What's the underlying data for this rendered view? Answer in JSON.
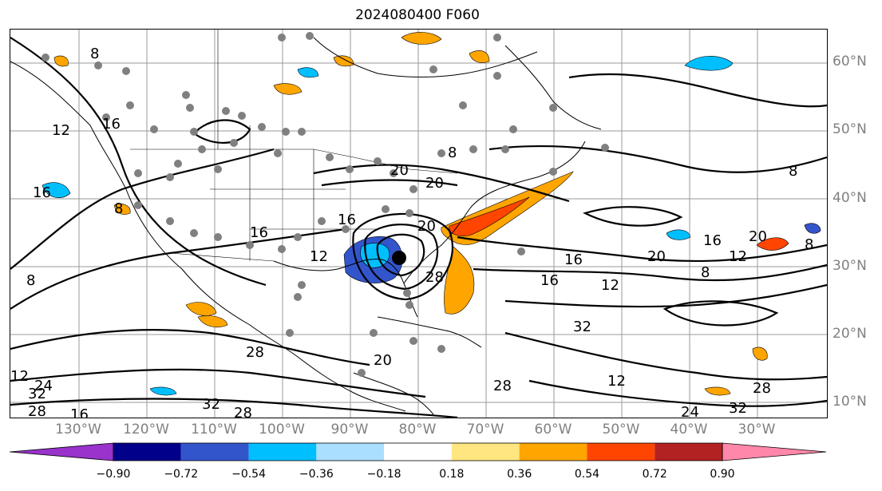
{
  "title": "2024080400 F060",
  "lat_labels": [
    "60°N",
    "50°N",
    "40°N",
    "30°N",
    "20°N",
    "10°N"
  ],
  "lon_labels": [
    "130°W",
    "120°W",
    "110°W",
    "100°W",
    "90°W",
    "80°W",
    "70°W",
    "60°W",
    "50°W",
    "40°W",
    "30°W"
  ],
  "contour_labels": [
    "8",
    "12",
    "16",
    "20",
    "24",
    "28",
    "32"
  ],
  "colorbar": {
    "ticks": [
      "−0.90",
      "−0.72",
      "−0.54",
      "−0.36",
      "−0.18",
      "0.18",
      "0.36",
      "0.54",
      "0.72",
      "0.90"
    ],
    "colors": [
      "#9933cc",
      "#00008b",
      "#3355cc",
      "#00bfff",
      "#aadfff",
      "#ffffff",
      "#ffe680",
      "#ffa500",
      "#ff4500",
      "#b22222",
      "#ff88aa"
    ]
  },
  "colors": {
    "negative_low": "#aadfff",
    "negative_mid": "#00bfff",
    "negative_high": "#3355cc",
    "positive_low": "#ffa500",
    "positive_high": "#ff4500",
    "station_dot": "#808080",
    "storm_center": "#000000"
  }
}
